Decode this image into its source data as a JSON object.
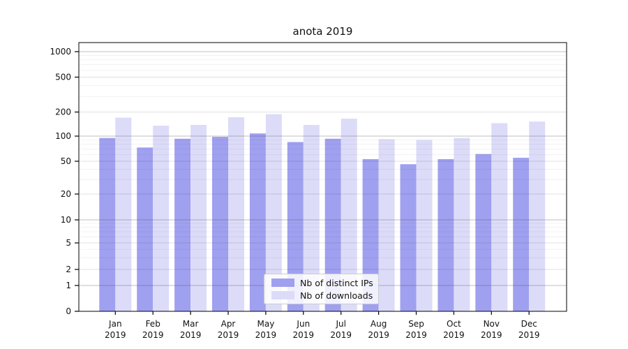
{
  "chart_data": {
    "type": "bar",
    "title": "anota 2019",
    "x_categories": [
      {
        "month": "Jan",
        "year": "2019"
      },
      {
        "month": "Feb",
        "year": "2019"
      },
      {
        "month": "Mar",
        "year": "2019"
      },
      {
        "month": "Apr",
        "year": "2019"
      },
      {
        "month": "May",
        "year": "2019"
      },
      {
        "month": "Jun",
        "year": "2019"
      },
      {
        "month": "Jul",
        "year": "2019"
      },
      {
        "month": "Aug",
        "year": "2019"
      },
      {
        "month": "Sep",
        "year": "2019"
      },
      {
        "month": "Oct",
        "year": "2019"
      },
      {
        "month": "Nov",
        "year": "2019"
      },
      {
        "month": "Dec",
        "year": "2019"
      }
    ],
    "series": [
      {
        "name": "Nb of distinct IPs",
        "color": "#a0a0f0",
        "values": [
          95,
          73,
          93,
          98,
          108,
          85,
          93,
          53,
          46,
          53,
          61,
          55
        ]
      },
      {
        "name": "Nb of downloads",
        "color": "#dcdcf9",
        "values": [
          170,
          135,
          138,
          172,
          188,
          138,
          165,
          92,
          90,
          95,
          145,
          152
        ]
      }
    ],
    "y_scale": "symlog",
    "y_ticks": [
      0,
      1,
      2,
      5,
      10,
      20,
      50,
      100,
      200,
      500,
      1000
    ],
    "ylim": [
      0,
      1400
    ],
    "grid": "major+minor",
    "legend_position": "lower-center",
    "axis_color": "#000000",
    "grid_major_dark_color": "#b5b5b5",
    "grid_major_light_color": "#e2e2e2",
    "grid_minor_color": "#efefef"
  }
}
